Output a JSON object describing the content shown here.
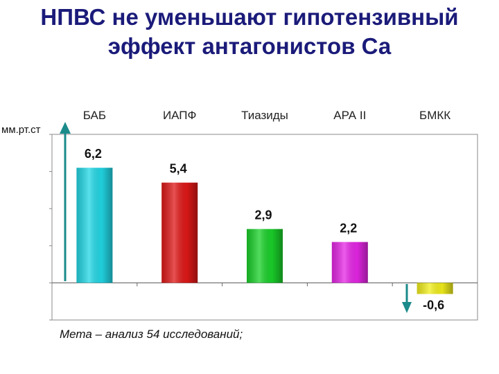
{
  "title_line1": "НПВС не уменьшают гипотензивный",
  "title_line2": "эффект антагонистов Са",
  "footnote": "Мета – анализ 54 исследований;",
  "chart_data": {
    "type": "bar",
    "categories": [
      "БАБ",
      "ИАПФ",
      "Тиазиды",
      "АРА II",
      "БМКК"
    ],
    "values": [
      6.2,
      5.4,
      2.9,
      2.2,
      -0.6
    ],
    "value_labels": [
      "6,2",
      "5,4",
      "2,9",
      "2,2",
      "-0,6"
    ],
    "ylabel": "мм.рт.ст",
    "ylim": [
      -2,
      8
    ],
    "colors": [
      "#22d8e6",
      "#e01818",
      "#1ad12a",
      "#e626e6",
      "#f2ef1c"
    ],
    "legend": "none",
    "grid": false
  }
}
